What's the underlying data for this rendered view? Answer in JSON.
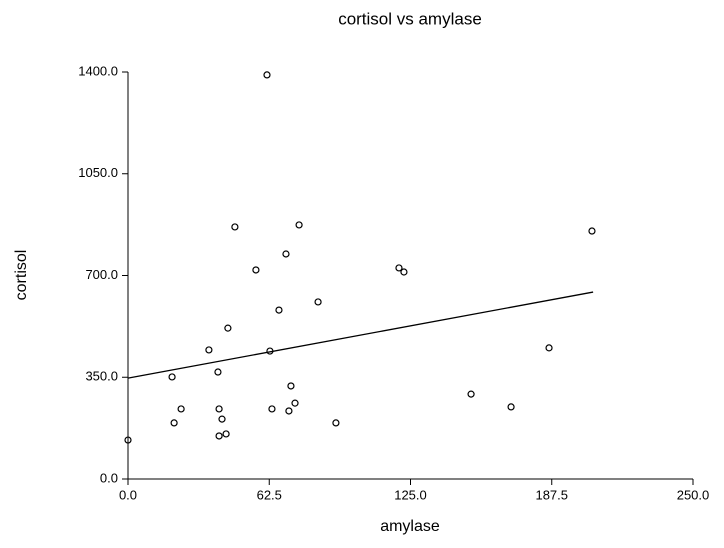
{
  "chart_data": {
    "type": "scatter",
    "title": "cortisol vs amylase",
    "x_label": "amylase",
    "y_label": "cortisol",
    "x": [
      61.5,
      47.3,
      75.7,
      69.9,
      56.6,
      66.8,
      84.1,
      44.2,
      35.8,
      62.8,
      39.8,
      72.1,
      19.5,
      23.5,
      20.4,
      40.3,
      41.6,
      63.7,
      71.2,
      73.9,
      40.3,
      43.4,
      92.0,
      0.0,
      119.9,
      122.1,
      151.8,
      169.5,
      186.3,
      205.3
    ],
    "y": [
      1390,
      867,
      874,
      774,
      719,
      581,
      609,
      519,
      444,
      440,
      368,
      320,
      351,
      241,
      193,
      241,
      206,
      241,
      234,
      261,
      148,
      155,
      193,
      134,
      726,
      712,
      292,
      248,
      451,
      853
    ],
    "color": "#000000",
    "fit_line": {
      "x": [
        0.0,
        205.8
      ],
      "y": [
        347,
        643
      ]
    },
    "xlim": [
      0,
      250
    ],
    "ylim": [
      0,
      1400
    ],
    "xticks": [
      {
        "value": 0,
        "label": "0.0"
      },
      {
        "value": 62.5,
        "label": "62.5"
      },
      {
        "value": 125,
        "label": "125.0"
      },
      {
        "value": 187.5,
        "label": "187.5"
      },
      {
        "value": 250,
        "label": "250.0"
      }
    ],
    "yticks": [
      {
        "value": 0,
        "label": "0.0"
      },
      {
        "value": 350,
        "label": "350.0"
      },
      {
        "value": 700,
        "label": "700.0"
      },
      {
        "value": 1050,
        "label": "1050.0"
      },
      {
        "value": 1400,
        "label": "1400.0"
      }
    ]
  }
}
